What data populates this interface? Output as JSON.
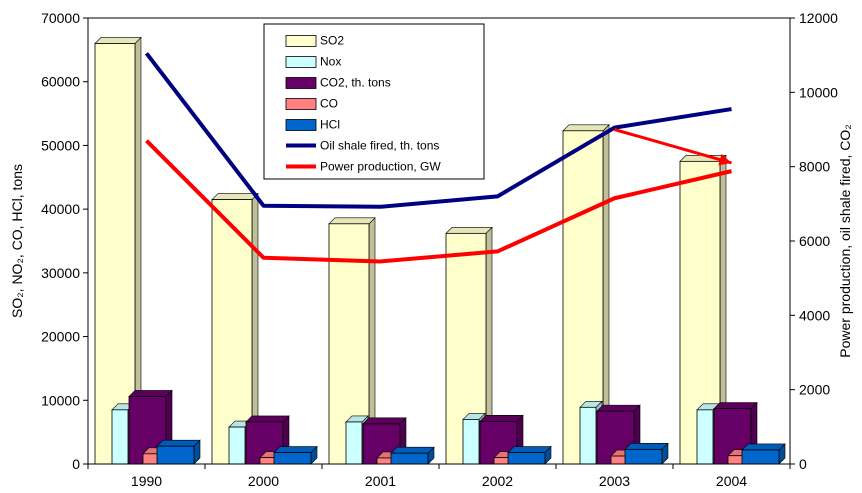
{
  "chart_data": {
    "type": "bar",
    "categories": [
      "1990",
      "2000",
      "2001",
      "2002",
      "2003",
      "2004"
    ],
    "series": [
      {
        "name": "SO2",
        "axis": "left",
        "kind": "bar",
        "color": "#FFFFCC",
        "values": [
          66000,
          41500,
          37700,
          36200,
          52300,
          47500
        ]
      },
      {
        "name": "Nox",
        "axis": "left",
        "kind": "bar",
        "color": "#CCFFFF",
        "values": [
          8500,
          5800,
          6600,
          7000,
          8900,
          8500
        ]
      },
      {
        "name": "CO2, th. tons",
        "axis": "left",
        "kind": "bar",
        "color": "#660066",
        "values": [
          10600,
          6600,
          6300,
          6700,
          8300,
          8700
        ]
      },
      {
        "name": "CO",
        "axis": "left",
        "kind": "bar",
        "color": "#FF8080",
        "values": [
          1600,
          1000,
          950,
          1000,
          1250,
          1300
        ]
      },
      {
        "name": "HCl",
        "axis": "left",
        "kind": "bar",
        "color": "#0066CC",
        "values": [
          2800,
          1800,
          1700,
          1800,
          2300,
          2200
        ]
      },
      {
        "name": "Oil shale fired, th. tons",
        "axis": "right",
        "kind": "line",
        "color": "#000080",
        "values": [
          11050,
          6950,
          6920,
          7200,
          9050,
          9550
        ]
      },
      {
        "name": "Power production, GW",
        "axis": "right",
        "kind": "line",
        "color": "#FF0000",
        "values": [
          8700,
          5550,
          5450,
          5720,
          7150,
          7880
        ]
      }
    ],
    "annotation": {
      "kind": "arrow",
      "color": "#FF0000",
      "from": {
        "category": "2003",
        "value": 9000,
        "axis": "right"
      },
      "to": {
        "category": "2004",
        "value": 8100,
        "axis": "right"
      }
    },
    "ylabel_left": "SO₂, NO₂, CO, HCl, tons",
    "ylabel_right": "Power production, oil shale fired, CO₂",
    "ylim_left": [
      0,
      70000
    ],
    "ylim_right": [
      0,
      12000
    ],
    "yticks_left": [
      "0",
      "10000",
      "20000",
      "30000",
      "40000",
      "50000",
      "60000",
      "70000"
    ],
    "yticks_right": [
      "0",
      "2000",
      "4000",
      "6000",
      "8000",
      "10000",
      "12000"
    ],
    "grid": false,
    "legend": "top-center, inside plot"
  }
}
